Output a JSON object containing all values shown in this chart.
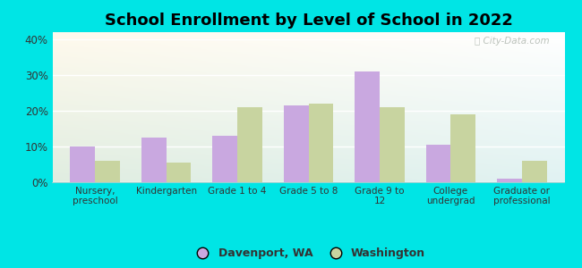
{
  "title": "School Enrollment by Level of School in 2022",
  "categories": [
    "Nursery,\npreschool",
    "Kindergarten",
    "Grade 1 to 4",
    "Grade 5 to 8",
    "Grade 9 to\n12",
    "College\nundergrad",
    "Graduate or\nprofessional"
  ],
  "davenport": [
    10.0,
    12.5,
    13.0,
    21.5,
    31.0,
    10.5,
    1.0
  ],
  "washington": [
    6.0,
    5.5,
    21.0,
    22.0,
    21.0,
    19.0,
    6.0
  ],
  "davenport_color": "#c9a8e0",
  "washington_color": "#c8d4a0",
  "background_outer": "#00e5e5",
  "ylim": [
    0,
    42
  ],
  "yticks": [
    0,
    10,
    20,
    30,
    40
  ],
  "legend_davenport": "Davenport, WA",
  "legend_washington": "Washington",
  "title_fontsize": 13,
  "bar_width": 0.35
}
